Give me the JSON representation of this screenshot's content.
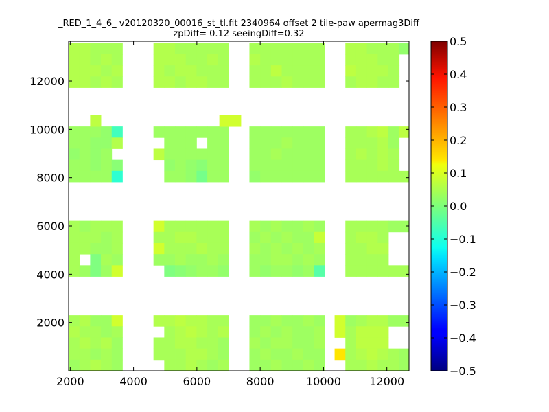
{
  "chart_data": {
    "type": "heatmap",
    "title_line1": "_RED_1_4_6_ v20120320_00016_st_tl.fit 2340964 offset 2 tile-paw apermag3Diff",
    "title_line2": "zpDiff= 0.12 seeingDiff=0.32",
    "xlabel": "",
    "ylabel": "",
    "xlim": [
      1950,
      12700
    ],
    "ylim": [
      0,
      13650
    ],
    "x_ticks": [
      2000,
      4000,
      6000,
      8000,
      10000,
      12000
    ],
    "y_ticks": [
      2000,
      4000,
      6000,
      8000,
      10000,
      12000
    ],
    "x_tick_labels": [
      "2000",
      "4000",
      "6000",
      "8000",
      "10000",
      "12000"
    ],
    "y_tick_labels": [
      "2000",
      "4000",
      "6000",
      "8000",
      "10000",
      "12000"
    ],
    "colormap": "jet",
    "colorbar": {
      "range": [
        -0.5,
        0.5
      ],
      "ticks": [
        0.5,
        0.4,
        0.3,
        0.2,
        0.1,
        0.0,
        -0.1,
        -0.2,
        -0.3,
        -0.4,
        -0.5
      ],
      "tick_labels": [
        "0.5",
        "0.4",
        "0.3",
        "0.2",
        "0.1",
        "0.0",
        "−0.1",
        "−0.2",
        "−0.3",
        "−0.4",
        "−0.5"
      ]
    },
    "cell_size": [
      340,
      460
    ],
    "detectors": [
      {
        "x0": 1950,
        "y0": 0,
        "cols": 5,
        "rows": 5,
        "values": [
          [
            0.04,
            0.05,
            0.03,
            0.03,
            0.08
          ],
          [
            0.05,
            0.04,
            0.04,
            0.03,
            0.04
          ],
          [
            0.04,
            0.05,
            0.04,
            0.05,
            0.03
          ],
          [
            0.04,
            0.04,
            0.03,
            0.04,
            0.03
          ],
          [
            0.03,
            0.04,
            0.05,
            0.04,
            0.03
          ]
        ]
      },
      {
        "x0": 4630,
        "y0": 0,
        "cols": 7,
        "rows": 5,
        "values": [
          [
            0.05,
            0.05,
            0.06,
            0.05,
            0.05,
            0.04,
            0.04
          ],
          [
            null,
            0.04,
            0.05,
            0.06,
            0.05,
            0.04,
            0.05
          ],
          [
            0.04,
            0.04,
            0.05,
            0.05,
            0.04,
            0.04,
            0.03
          ],
          [
            0.04,
            0.04,
            0.04,
            0.05,
            0.05,
            0.04,
            0.03
          ],
          [
            null,
            0.04,
            0.04,
            0.05,
            0.04,
            0.03,
            0.04
          ]
        ]
      },
      {
        "x0": 7660,
        "y0": 0,
        "cols": 7,
        "rows": 5,
        "values": [
          [
            0.03,
            0.03,
            0.04,
            0.03,
            0.03,
            0.04,
            0.03
          ],
          [
            0.03,
            0.04,
            0.03,
            0.04,
            0.03,
            0.03,
            0.04
          ],
          [
            0.04,
            0.03,
            0.04,
            0.04,
            0.03,
            0.03,
            0.04
          ],
          [
            0.03,
            0.04,
            0.03,
            0.03,
            0.04,
            0.03,
            0.03
          ],
          [
            0.03,
            0.03,
            0.04,
            0.03,
            0.03,
            0.04,
            0.03
          ]
        ]
      },
      {
        "x0": 10350,
        "y0": 0,
        "cols": 7,
        "rows": 5,
        "values": [
          [
            0.08,
            0.03,
            0.04,
            0.05,
            0.05,
            0.03,
            0.03
          ],
          [
            0.08,
            0.04,
            0.06,
            0.06,
            0.06,
            null,
            null
          ],
          [
            null,
            0.04,
            0.06,
            0.06,
            0.06,
            null,
            null
          ],
          [
            0.15,
            0.04,
            0.05,
            0.06,
            0.05,
            0.04,
            0.03
          ],
          [
            null,
            0.04,
            0.04,
            0.05,
            0.04,
            0.04,
            0.03
          ]
        ]
      },
      {
        "x0": 1950,
        "y0": 3910,
        "cols": 5,
        "rows": 5,
        "values": [
          [
            0.04,
            0.03,
            0.04,
            0.04,
            0.04
          ],
          [
            0.04,
            0.04,
            0.04,
            0.03,
            0.04
          ],
          [
            0.04,
            0.04,
            0.03,
            0.03,
            0.04
          ],
          [
            0.04,
            null,
            0.0,
            0.04,
            0.03
          ],
          [
            0.04,
            0.03,
            0.0,
            0.03,
            0.08
          ]
        ]
      },
      {
        "x0": 4630,
        "y0": 3910,
        "cols": 7,
        "rows": 5,
        "values": [
          [
            0.08,
            0.04,
            0.04,
            0.04,
            0.04,
            0.04,
            0.04
          ],
          [
            0.04,
            0.04,
            0.05,
            0.05,
            0.04,
            0.04,
            0.04
          ],
          [
            0.08,
            0.04,
            0.04,
            0.04,
            0.05,
            0.04,
            0.04
          ],
          [
            0.03,
            0.03,
            0.04,
            0.03,
            0.03,
            0.04,
            0.03
          ],
          [
            null,
            0.0,
            0.01,
            0.02,
            0.03,
            0.03,
            0.02
          ]
        ]
      },
      {
        "x0": 7660,
        "y0": 3910,
        "cols": 7,
        "rows": 5,
        "values": [
          [
            0.04,
            0.03,
            0.04,
            0.03,
            0.03,
            0.04,
            0.03
          ],
          [
            0.03,
            0.04,
            0.03,
            0.04,
            0.03,
            0.03,
            0.07
          ],
          [
            0.04,
            0.03,
            0.04,
            0.03,
            0.04,
            0.03,
            0.04
          ],
          [
            0.03,
            0.03,
            0.04,
            0.04,
            0.03,
            0.04,
            0.03
          ],
          [
            0.03,
            0.02,
            0.03,
            0.03,
            0.02,
            0.03,
            -0.04
          ]
        ]
      },
      {
        "x0": 10350,
        "y0": 3910,
        "cols": 7,
        "rows": 5,
        "values": [
          [
            null,
            0.04,
            0.04,
            0.04,
            0.04,
            0.03,
            0.03
          ],
          [
            null,
            0.04,
            0.05,
            0.05,
            0.04,
            null,
            null
          ],
          [
            null,
            0.04,
            0.04,
            0.05,
            0.05,
            null,
            null
          ],
          [
            null,
            0.04,
            0.04,
            0.04,
            0.04,
            null,
            null
          ],
          [
            null,
            0.04,
            0.04,
            0.04,
            0.04,
            0.04,
            0.04
          ]
        ]
      },
      {
        "x0": 1950,
        "y0": 7820,
        "cols": 5,
        "rows": 5,
        "values": [
          [
            0.03,
            0.03,
            0.03,
            0.02,
            -0.06
          ],
          [
            0.03,
            0.03,
            0.02,
            0.02,
            0.05
          ],
          [
            0.02,
            0.03,
            0.02,
            0.03,
            null
          ],
          [
            0.03,
            0.03,
            0.02,
            0.03,
            0.01
          ],
          [
            0.03,
            0.03,
            0.03,
            0.03,
            -0.08
          ]
        ]
      },
      {
        "x0": 4630,
        "y0": 7820,
        "cols": 7,
        "rows": 5,
        "values": [
          [
            0.03,
            0.03,
            0.03,
            0.03,
            0.03,
            0.03,
            0.03
          ],
          [
            null,
            0.03,
            0.03,
            0.03,
            null,
            0.03,
            0.03
          ],
          [
            0.06,
            0.03,
            0.03,
            0.03,
            0.03,
            0.03,
            0.03
          ],
          [
            null,
            0.02,
            0.03,
            0.02,
            0.01,
            0.03,
            0.03
          ],
          [
            null,
            0.03,
            0.03,
            0.02,
            -0.01,
            0.03,
            0.03
          ]
        ]
      },
      {
        "x0": 7660,
        "y0": 7820,
        "cols": 7,
        "rows": 5,
        "values": [
          [
            0.03,
            0.03,
            0.03,
            0.03,
            0.03,
            0.03,
            0.03
          ],
          [
            0.03,
            0.03,
            0.03,
            0.04,
            0.03,
            0.03,
            0.03
          ],
          [
            0.03,
            0.03,
            0.04,
            0.03,
            0.03,
            0.03,
            0.03
          ],
          [
            0.03,
            0.03,
            0.03,
            0.03,
            0.03,
            0.03,
            0.03
          ],
          [
            0.02,
            0.03,
            0.03,
            0.03,
            0.03,
            0.03,
            0.03
          ]
        ]
      },
      {
        "x0": 10350,
        "y0": 7820,
        "cols": 7,
        "rows": 5,
        "values": [
          [
            null,
            0.04,
            0.04,
            0.05,
            0.06,
            0.03,
            0.06
          ],
          [
            null,
            0.04,
            0.04,
            0.04,
            0.05,
            0.03,
            null
          ],
          [
            null,
            0.04,
            0.05,
            0.04,
            0.05,
            0.04,
            null
          ],
          [
            null,
            0.04,
            0.04,
            0.04,
            0.05,
            0.04,
            null
          ],
          [
            null,
            0.04,
            0.04,
            0.04,
            0.04,
            0.04,
            0.04
          ]
        ]
      },
      {
        "x0": 1950,
        "y0": 11730,
        "cols": 5,
        "rows": 4,
        "values": [
          [
            0.05,
            0.05,
            0.04,
            0.04,
            0.04
          ],
          [
            0.05,
            0.05,
            0.04,
            0.05,
            0.04
          ],
          [
            0.05,
            0.05,
            0.05,
            0.04,
            0.05
          ],
          [
            0.05,
            0.05,
            0.04,
            0.05,
            0.04
          ]
        ]
      },
      {
        "x0": 4630,
        "y0": 11730,
        "cols": 7,
        "rows": 4,
        "values": [
          [
            0.05,
            0.05,
            0.04,
            0.04,
            0.04,
            0.04,
            0.04
          ],
          [
            0.05,
            0.05,
            0.05,
            0.04,
            0.04,
            0.05,
            0.04
          ],
          [
            0.05,
            0.04,
            0.05,
            0.05,
            0.04,
            0.04,
            0.04
          ],
          [
            0.05,
            0.05,
            0.04,
            0.05,
            0.05,
            0.04,
            0.04
          ]
        ]
      },
      {
        "x0": 7660,
        "y0": 11730,
        "cols": 7,
        "rows": 4,
        "values": [
          [
            0.04,
            0.04,
            0.04,
            0.04,
            0.04,
            0.04,
            0.04
          ],
          [
            0.05,
            0.04,
            0.04,
            0.04,
            0.04,
            0.04,
            0.04
          ],
          [
            0.04,
            0.04,
            0.06,
            0.04,
            0.04,
            0.04,
            0.04
          ],
          [
            0.04,
            0.04,
            0.04,
            0.05,
            0.04,
            0.04,
            0.04
          ]
        ]
      },
      {
        "x0": 10350,
        "y0": 11730,
        "cols": 7,
        "rows": 4,
        "values": [
          [
            null,
            0.05,
            0.05,
            0.04,
            0.04,
            0.04,
            0.02
          ],
          [
            null,
            0.05,
            0.05,
            0.05,
            0.04,
            0.04,
            null
          ],
          [
            null,
            0.06,
            0.05,
            0.05,
            0.05,
            0.04,
            null
          ],
          [
            null,
            0.04,
            0.05,
            0.05,
            0.04,
            0.04,
            null
          ]
        ]
      }
    ],
    "extra_cells": [
      {
        "x": 2630,
        "y": 10120,
        "value": 0.06
      },
      {
        "x": 6710,
        "y": 10120,
        "value": 0.08
      },
      {
        "x": 7050,
        "y": 10120,
        "value": 0.08
      }
    ]
  }
}
